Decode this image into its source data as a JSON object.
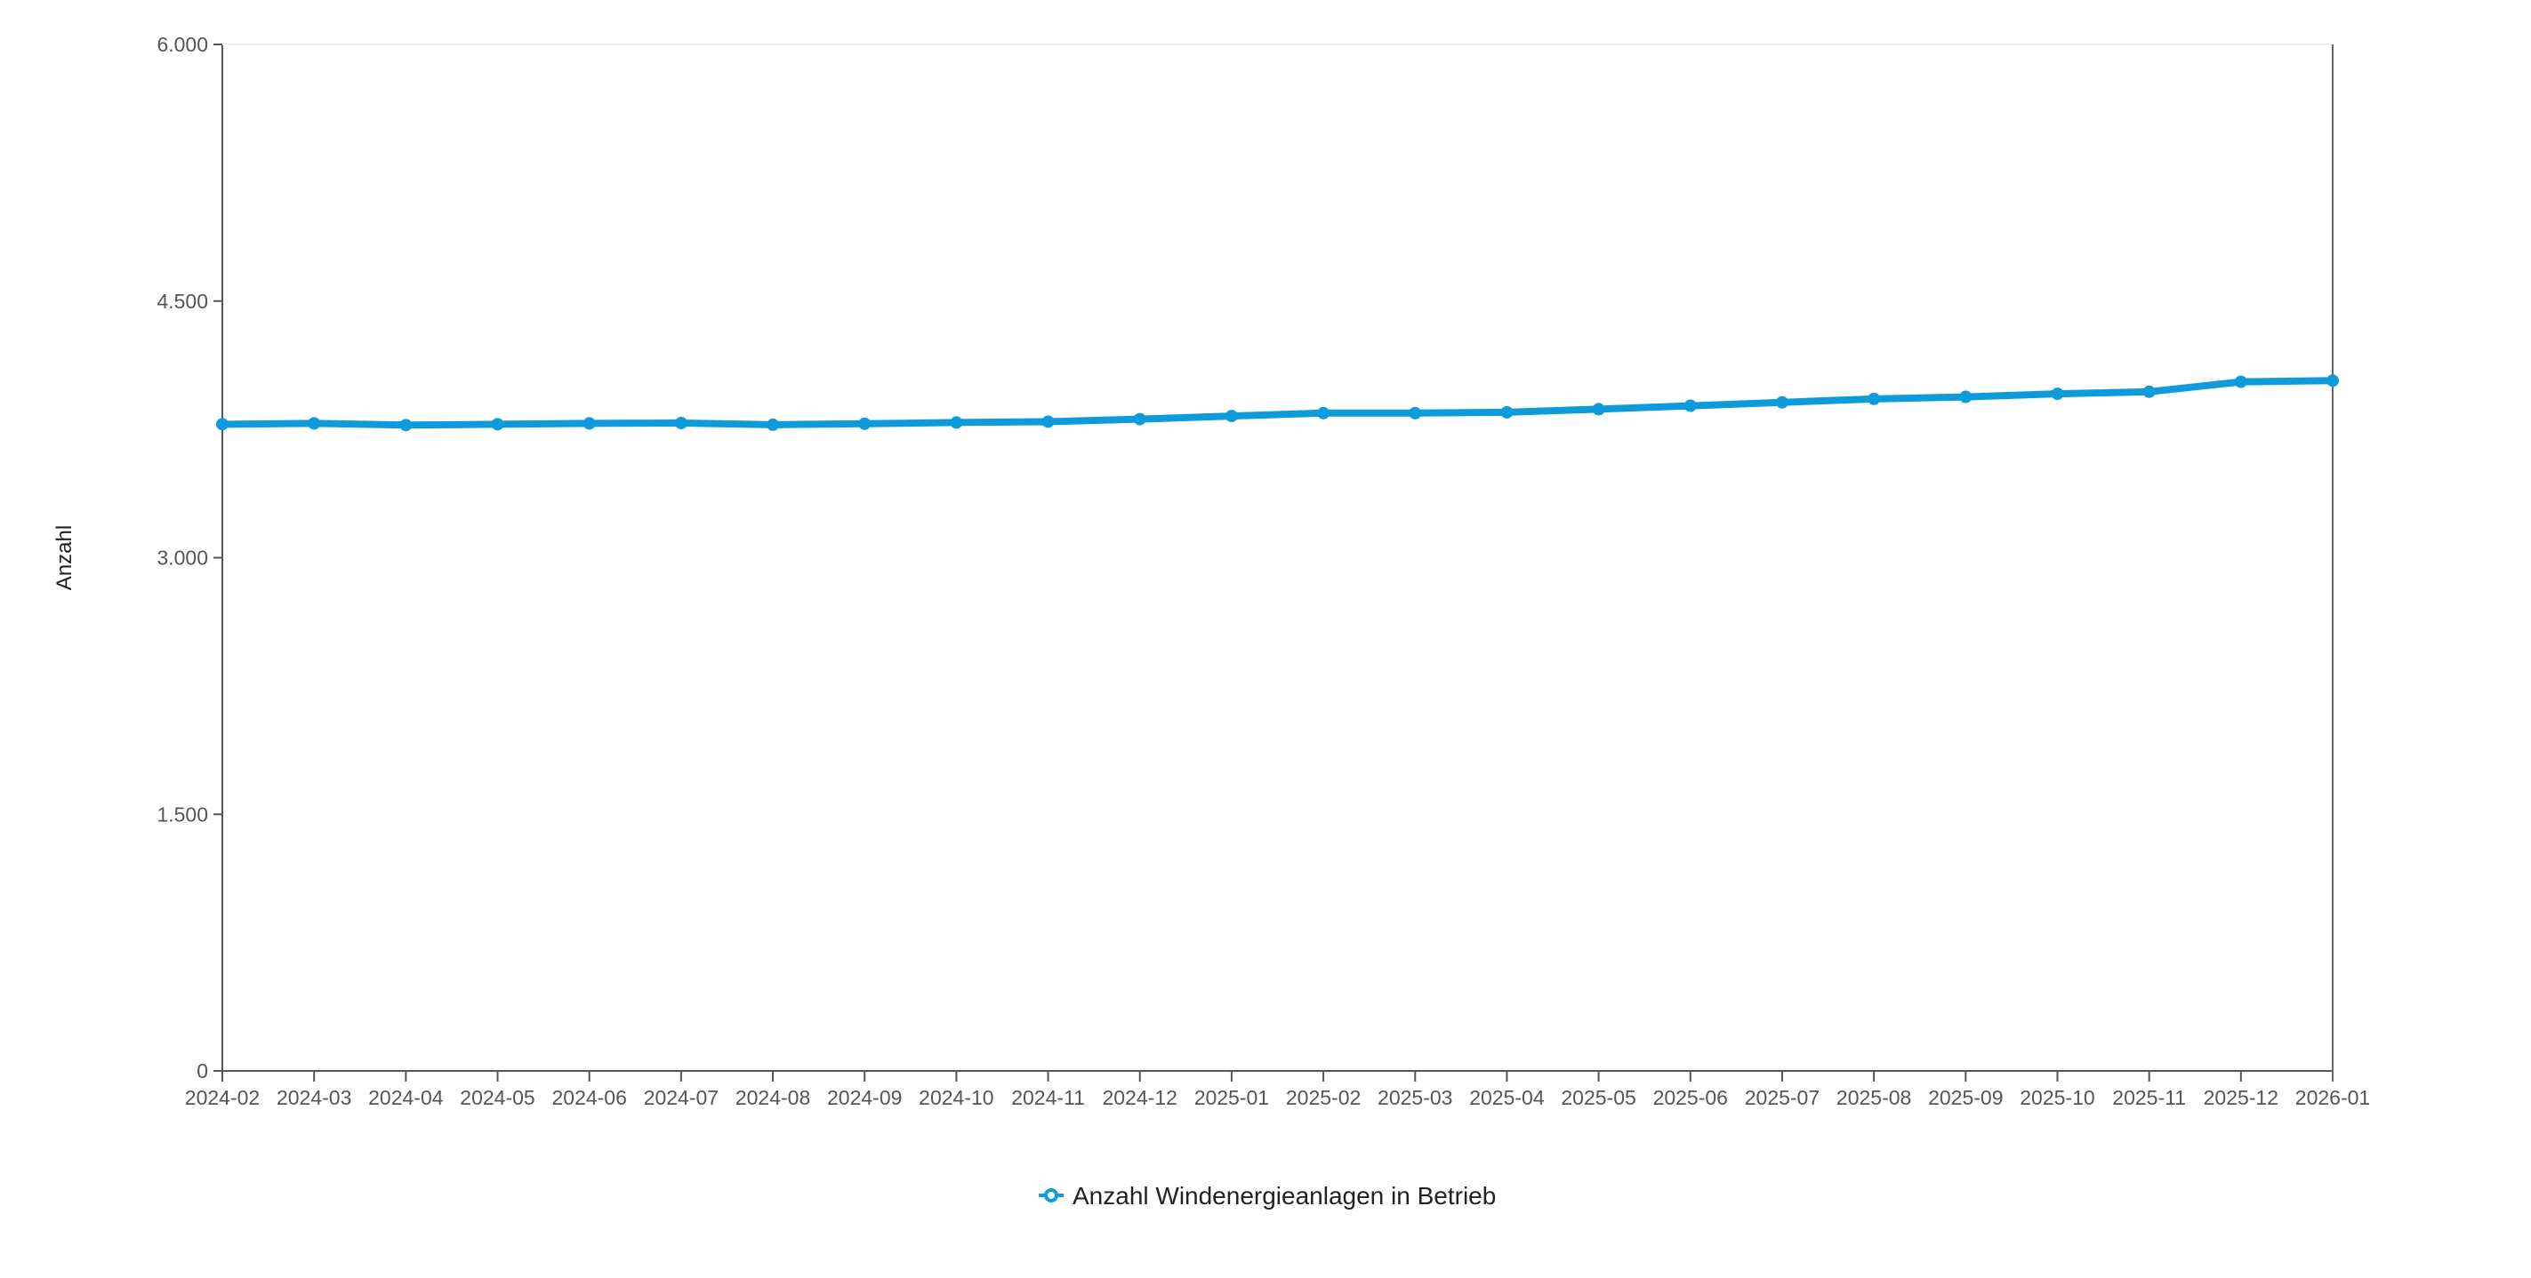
{
  "chart_data": {
    "type": "line",
    "title": "",
    "xlabel": "",
    "ylabel": "Anzahl",
    "x": [
      "2024-02",
      "2024-03",
      "2024-04",
      "2024-05",
      "2024-06",
      "2024-07",
      "2024-08",
      "2024-09",
      "2024-10",
      "2024-11",
      "2024-12",
      "2025-01",
      "2025-02",
      "2025-03",
      "2025-04",
      "2025-05",
      "2025-06",
      "2025-07",
      "2025-08",
      "2025-09",
      "2025-10",
      "2025-11",
      "2025-12",
      "2026-01"
    ],
    "series": [
      {
        "name": "Anzahl Windenergieanlagen in Betrieb",
        "color": "#0e9bdc",
        "values": [
          3780,
          3785,
          3775,
          3780,
          3785,
          3787,
          3777,
          3783,
          3790,
          3795,
          3810,
          3828,
          3845,
          3845,
          3850,
          3868,
          3888,
          3908,
          3928,
          3940,
          3958,
          3970,
          4028,
          4035
        ]
      }
    ],
    "ylim": [
      0,
      6000
    ],
    "yticks": [
      0,
      1500,
      3000,
      4500,
      6000
    ],
    "ytick_labels": [
      "0",
      "1.500",
      "3.000",
      "4.500",
      "6.000"
    ],
    "grid": false,
    "legend_position": "bottom-center"
  },
  "colors": {
    "series": "#0e9bdc",
    "axis": "#555555"
  }
}
